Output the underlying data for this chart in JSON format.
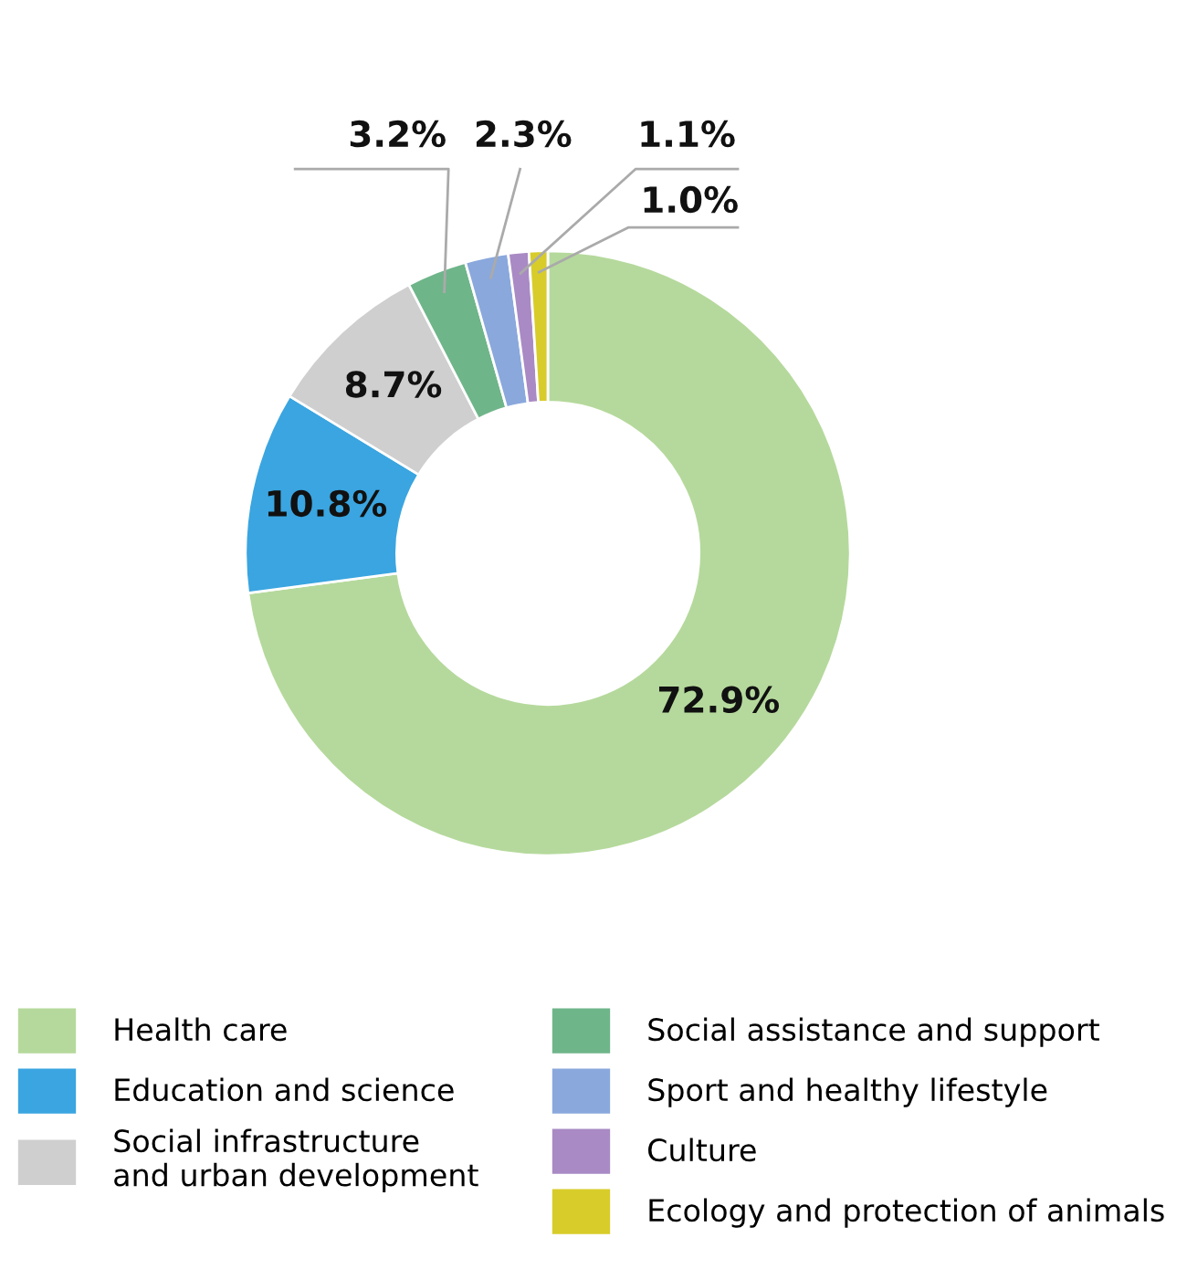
{
  "chart_data": {
    "type": "donut",
    "categories": [
      "Health care",
      "Education and science",
      "Social infrastructure\nand urban development",
      "Social assistance and support",
      "Sport and healthy lifestyle",
      "Culture",
      "Ecology and protection of animals"
    ],
    "values": [
      72.9,
      10.8,
      8.7,
      3.2,
      2.3,
      1.1,
      1.0
    ],
    "colors": [
      "#b5d99c",
      "#3aa5e0",
      "#cfcfcf",
      "#6fb58a",
      "#8aa8dc",
      "#a98ac4",
      "#d8cc2a"
    ],
    "value_labels": [
      "72.9%",
      "10.8%",
      "8.7%",
      "3.2%",
      "2.3%",
      "1.1%",
      "1.0%"
    ],
    "legend": "bottom"
  }
}
